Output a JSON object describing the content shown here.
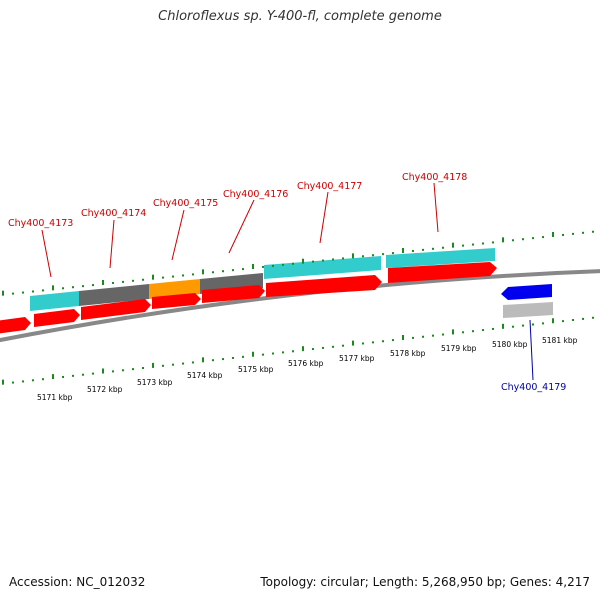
{
  "title": "Chloroflexus sp. Y-400-fl, complete genome",
  "footer": {
    "accession": "Accession: NC_012032",
    "stats": "Topology: circular; Length: 5,268,950 bp; Genes: 4,217"
  },
  "kbp_labels": [
    "5171 kbp",
    "5172 kbp",
    "5173 kbp",
    "5174 kbp",
    "5175 kbp",
    "5176 kbp",
    "5177 kbp",
    "5178 kbp",
    "5179 kbp",
    "5180 kbp",
    "5181 kbp"
  ],
  "gene_labels": [
    "Chy400_4173",
    "Chy400_4174",
    "Chy400_4175",
    "Chy400_4176",
    "Chy400_4177",
    "Chy400_4178",
    "Chy400_4179"
  ],
  "colors": {
    "forward_cds": "#ff0000",
    "reverse_cds": "#0000ee",
    "label_forward": "#cc0000",
    "label_reverse": "#0000aa",
    "feature_cyan": "#33cccc",
    "feature_gray": "#666666",
    "feature_orange": "#ff9900",
    "feature_lightgray": "#bbbbbb",
    "backbone": "#888888",
    "ticks": "#1a8a1a"
  }
}
